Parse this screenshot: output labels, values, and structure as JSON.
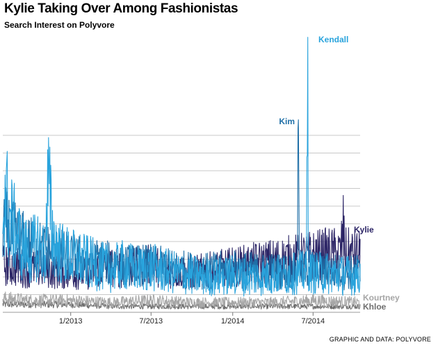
{
  "title": "Kylie Taking Over Among Fashionistas",
  "subtitle": "Search Interest on Polyvore",
  "credit": "GRAPHIC AND DATA: POLYVORE",
  "chart_data": {
    "type": "line",
    "title": "Kylie Taking Over Among Fashionistas",
    "subtitle": "Search Interest on Polyvore",
    "xlabel": "",
    "ylabel": "",
    "x_range": [
      "2012-08-01",
      "2014-10-15"
    ],
    "x_ticks": [
      "1/2013",
      "7/2013",
      "1/2014",
      "7/2014"
    ],
    "grid": true,
    "y_gridlines": 18,
    "legend": "direct labels at right end of each line",
    "series": [
      {
        "name": "Kendall",
        "color": "#29a3dc",
        "points": [
          [
            "2012-08-01",
            44
          ],
          [
            "2012-08-06",
            62
          ],
          [
            "2012-08-16",
            48
          ],
          [
            "2012-09-01",
            40
          ],
          [
            "2012-09-15",
            33
          ],
          [
            "2012-10-01",
            30
          ],
          [
            "2012-10-20",
            35
          ],
          [
            "2012-11-05",
            28
          ],
          [
            "2012-11-11",
            66
          ],
          [
            "2012-11-22",
            38
          ],
          [
            "2012-12-10",
            30
          ],
          [
            "2013-01-01",
            28
          ],
          [
            "2013-02-01",
            26
          ],
          [
            "2013-03-01",
            24
          ],
          [
            "2013-04-01",
            22
          ],
          [
            "2013-05-01",
            24
          ],
          [
            "2013-06-01",
            22
          ],
          [
            "2013-07-01",
            23
          ],
          [
            "2013-08-01",
            21
          ],
          [
            "2013-09-01",
            20
          ],
          [
            "2013-10-01",
            19
          ],
          [
            "2013-11-01",
            18
          ],
          [
            "2013-12-01",
            18
          ],
          [
            "2014-01-01",
            19
          ],
          [
            "2014-02-01",
            18
          ],
          [
            "2014-03-01",
            18
          ],
          [
            "2014-04-01",
            19
          ],
          [
            "2014-05-01",
            19
          ],
          [
            "2014-06-01",
            20
          ],
          [
            "2014-06-16",
            20
          ],
          [
            "2014-06-19",
            140
          ],
          [
            "2014-06-21",
            22
          ],
          [
            "2014-07-01",
            20
          ],
          [
            "2014-08-01",
            20
          ],
          [
            "2014-09-01",
            19
          ],
          [
            "2014-10-15",
            19
          ]
        ],
        "peak": {
          "date": "2014-06-19",
          "value": 140
        }
      },
      {
        "name": "Kim",
        "color": "#1f6fa7",
        "points": [
          [
            "2012-08-01",
            46
          ],
          [
            "2012-09-01",
            38
          ],
          [
            "2012-10-01",
            34
          ],
          [
            "2012-11-01",
            32
          ],
          [
            "2012-12-01",
            30
          ],
          [
            "2013-01-01",
            28
          ],
          [
            "2013-03-01",
            26
          ],
          [
            "2013-05-01",
            24
          ],
          [
            "2013-07-01",
            24
          ],
          [
            "2013-09-01",
            22
          ],
          [
            "2013-11-01",
            21
          ],
          [
            "2014-01-01",
            22
          ],
          [
            "2014-03-01",
            21
          ],
          [
            "2014-05-01",
            21
          ],
          [
            "2014-05-26",
            21
          ],
          [
            "2014-05-29",
            98
          ],
          [
            "2014-06-01",
            22
          ],
          [
            "2014-08-01",
            21
          ],
          [
            "2014-10-15",
            20
          ]
        ],
        "peak": {
          "date": "2014-05-29",
          "value": 98
        }
      },
      {
        "name": "Kylie",
        "color": "#2c2566",
        "points": [
          [
            "2012-08-01",
            24
          ],
          [
            "2012-09-01",
            23
          ],
          [
            "2012-10-01",
            22
          ],
          [
            "2012-11-01",
            22
          ],
          [
            "2012-12-01",
            21
          ],
          [
            "2013-01-01",
            21
          ],
          [
            "2013-02-01",
            20
          ],
          [
            "2013-03-01",
            22
          ],
          [
            "2013-04-01",
            23
          ],
          [
            "2013-05-01",
            22
          ],
          [
            "2013-06-01",
            23
          ],
          [
            "2013-07-01",
            24
          ],
          [
            "2013-08-01",
            22
          ],
          [
            "2013-09-01",
            21
          ],
          [
            "2013-10-01",
            20
          ],
          [
            "2013-11-01",
            21
          ],
          [
            "2013-12-01",
            22
          ],
          [
            "2014-01-01",
            23
          ],
          [
            "2014-02-01",
            24
          ],
          [
            "2014-03-01",
            25
          ],
          [
            "2014-04-01",
            26
          ],
          [
            "2014-05-01",
            27
          ],
          [
            "2014-06-01",
            28
          ],
          [
            "2014-07-01",
            29
          ],
          [
            "2014-08-01",
            30
          ],
          [
            "2014-09-01",
            30
          ],
          [
            "2014-09-07",
            42
          ],
          [
            "2014-09-12",
            30
          ],
          [
            "2014-10-15",
            29
          ]
        ]
      },
      {
        "name": "Kourtney",
        "color": "#a6a6a6",
        "points": [
          [
            "2012-08-01",
            7
          ],
          [
            "2012-10-01",
            6
          ],
          [
            "2013-01-01",
            6
          ],
          [
            "2013-04-01",
            5
          ],
          [
            "2013-07-01",
            6
          ],
          [
            "2013-10-01",
            5
          ],
          [
            "2014-01-01",
            5
          ],
          [
            "2014-04-01",
            5
          ],
          [
            "2014-07-01",
            6
          ],
          [
            "2014-10-15",
            5
          ]
        ]
      },
      {
        "name": "Khloe",
        "color": "#6e6e6e",
        "points": [
          [
            "2012-08-01",
            4
          ],
          [
            "2012-10-01",
            4
          ],
          [
            "2013-01-01",
            4
          ],
          [
            "2013-04-01",
            3
          ],
          [
            "2013-07-01",
            3
          ],
          [
            "2013-10-01",
            3
          ],
          [
            "2014-01-01",
            3
          ],
          [
            "2014-04-01",
            3
          ],
          [
            "2014-07-01",
            3
          ],
          [
            "2014-10-15",
            3
          ]
        ]
      }
    ]
  }
}
